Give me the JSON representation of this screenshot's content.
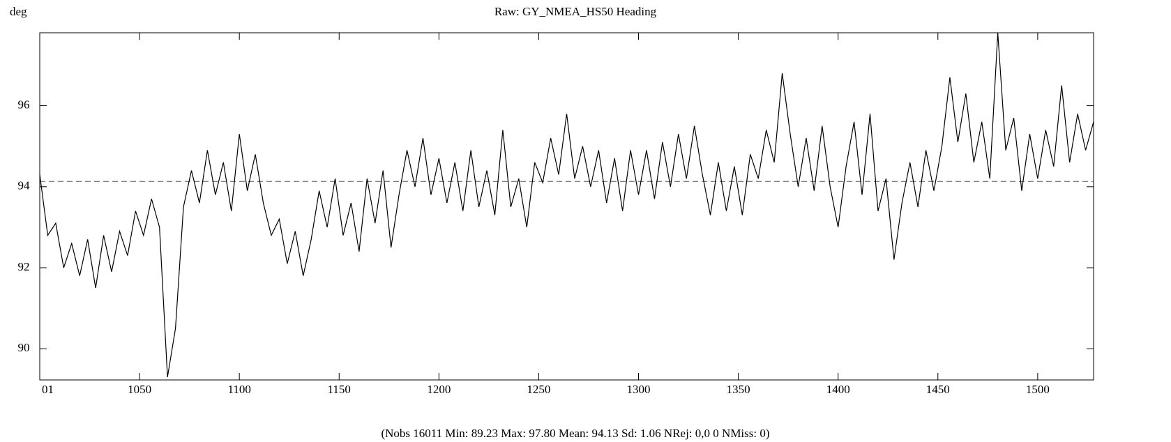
{
  "chart_data": {
    "type": "line",
    "title": "Raw: GY_NMEA_HS50 Heading",
    "y_label": "deg",
    "footer": "(Nobs 16011 Min: 89.23 Max: 97.80 Mean: 94.13 Sd: 1.06 NRej: 0,0 0 NMiss: 0)",
    "color": "#000000",
    "reference_line": 94.13,
    "xlim": [
      1000,
      1528
    ],
    "ylim": [
      89.23,
      97.8
    ],
    "xticks": [
      {
        "value": 1000,
        "label": "01"
      },
      1050,
      1100,
      1150,
      1200,
      1250,
      1300,
      1350,
      1400,
      1450,
      1500
    ],
    "yticks": [
      90,
      92,
      94,
      96
    ],
    "x": [
      1000,
      1004,
      1008,
      1012,
      1016,
      1020,
      1024,
      1028,
      1032,
      1036,
      1040,
      1044,
      1048,
      1052,
      1056,
      1060,
      1064,
      1068,
      1072,
      1076,
      1080,
      1084,
      1088,
      1092,
      1096,
      1100,
      1104,
      1108,
      1112,
      1116,
      1120,
      1124,
      1128,
      1132,
      1136,
      1140,
      1144,
      1148,
      1152,
      1156,
      1160,
      1164,
      1168,
      1172,
      1176,
      1180,
      1184,
      1188,
      1192,
      1196,
      1200,
      1204,
      1208,
      1212,
      1216,
      1220,
      1224,
      1228,
      1232,
      1236,
      1240,
      1244,
      1248,
      1252,
      1256,
      1260,
      1264,
      1268,
      1272,
      1276,
      1280,
      1284,
      1288,
      1292,
      1296,
      1300,
      1304,
      1308,
      1312,
      1316,
      1320,
      1324,
      1328,
      1332,
      1336,
      1340,
      1344,
      1348,
      1352,
      1356,
      1360,
      1364,
      1368,
      1372,
      1376,
      1380,
      1384,
      1388,
      1392,
      1396,
      1400,
      1404,
      1408,
      1412,
      1416,
      1420,
      1424,
      1428,
      1432,
      1436,
      1440,
      1444,
      1448,
      1452,
      1456,
      1460,
      1464,
      1468,
      1472,
      1476,
      1480,
      1484,
      1488,
      1492,
      1496,
      1500,
      1504,
      1508,
      1512,
      1516,
      1520,
      1524,
      1528
    ],
    "values": [
      94.3,
      92.8,
      93.1,
      92.0,
      92.6,
      91.8,
      92.7,
      91.5,
      92.8,
      91.9,
      92.9,
      92.3,
      93.4,
      92.8,
      93.7,
      93.0,
      89.3,
      90.5,
      93.5,
      94.4,
      93.6,
      94.9,
      93.8,
      94.6,
      93.4,
      95.3,
      93.9,
      94.8,
      93.6,
      92.8,
      93.2,
      92.1,
      92.9,
      91.8,
      92.7,
      93.9,
      93.0,
      94.2,
      92.8,
      93.6,
      92.4,
      94.2,
      93.1,
      94.4,
      92.5,
      93.8,
      94.9,
      94.0,
      95.2,
      93.8,
      94.7,
      93.6,
      94.6,
      93.4,
      94.9,
      93.5,
      94.4,
      93.3,
      95.4,
      93.5,
      94.2,
      93.0,
      94.6,
      94.1,
      95.2,
      94.3,
      95.8,
      94.2,
      95.0,
      94.0,
      94.9,
      93.6,
      94.7,
      93.4,
      94.9,
      93.8,
      94.9,
      93.7,
      95.1,
      94.0,
      95.3,
      94.2,
      95.5,
      94.3,
      93.3,
      94.6,
      93.4,
      94.5,
      93.3,
      94.8,
      94.2,
      95.4,
      94.6,
      96.8,
      95.3,
      94.0,
      95.2,
      93.9,
      95.5,
      94.0,
      93.0,
      94.5,
      95.6,
      93.8,
      95.8,
      93.4,
      94.2,
      92.2,
      93.6,
      94.6,
      93.5,
      94.9,
      93.9,
      95.0,
      96.7,
      95.1,
      96.3,
      94.6,
      95.6,
      94.2,
      97.8,
      94.9,
      95.7,
      93.9,
      95.3,
      94.2,
      95.4,
      94.5,
      96.5,
      94.6,
      95.8,
      94.9,
      95.6
    ]
  }
}
